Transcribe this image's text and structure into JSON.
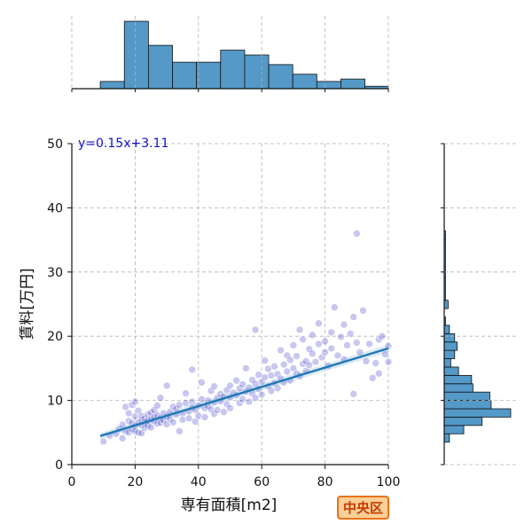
{
  "chart_data": {
    "type": "scatter",
    "xlabel": "専有面積[m2]",
    "ylabel": "賃料[万円]",
    "xlim": [
      0,
      100
    ],
    "ylim": [
      0,
      50
    ],
    "x_ticks": [
      "0",
      "20",
      "40",
      "60",
      "80",
      "100"
    ],
    "y_ticks": [
      "0",
      "10",
      "20",
      "30",
      "40",
      "50"
    ],
    "grid": true,
    "regression": {
      "slope": 0.15,
      "intercept": 3.11,
      "x_range": [
        9,
        100
      ],
      "label": "y=0.15x+3.11"
    },
    "points": [
      [
        10,
        3.6
      ],
      [
        12,
        4.5
      ],
      [
        14,
        4.8
      ],
      [
        15,
        5.6
      ],
      [
        16,
        6.2
      ],
      [
        16,
        4.1
      ],
      [
        17,
        5.2
      ],
      [
        17,
        9.0
      ],
      [
        18,
        6.8
      ],
      [
        18,
        5.0
      ],
      [
        18,
        8.0
      ],
      [
        19,
        6.5
      ],
      [
        19,
        5.5
      ],
      [
        19,
        9.3
      ],
      [
        20,
        6.0
      ],
      [
        20,
        7.5
      ],
      [
        20,
        5.2
      ],
      [
        20,
        9.8
      ],
      [
        21,
        6.6
      ],
      [
        21,
        5.0
      ],
      [
        21,
        8.4
      ],
      [
        22,
        6.9
      ],
      [
        22,
        7.6
      ],
      [
        22,
        4.9
      ],
      [
        22,
        6.2
      ],
      [
        23,
        6.5
      ],
      [
        23,
        7.2
      ],
      [
        23,
        5.7
      ],
      [
        24,
        6.9
      ],
      [
        24,
        7.8
      ],
      [
        24,
        6.1
      ],
      [
        25,
        7.1
      ],
      [
        25,
        8.1
      ],
      [
        25,
        5.8
      ],
      [
        26,
        6.8
      ],
      [
        26,
        8.5
      ],
      [
        26,
        7.4
      ],
      [
        27,
        6.4
      ],
      [
        27,
        9.2
      ],
      [
        27,
        7.7
      ],
      [
        28,
        7.2
      ],
      [
        28,
        6.5
      ],
      [
        28,
        10.4
      ],
      [
        29,
        8.0
      ],
      [
        29,
        6.9
      ],
      [
        30,
        7.5
      ],
      [
        30,
        12.3
      ],
      [
        30,
        6.3
      ],
      [
        31,
        8.2
      ],
      [
        31,
        7.1
      ],
      [
        32,
        9.0
      ],
      [
        32,
        6.6
      ],
      [
        33,
        7.8
      ],
      [
        33,
        8.7
      ],
      [
        34,
        5.2
      ],
      [
        34,
        9.3
      ],
      [
        35,
        8.0
      ],
      [
        35,
        7.0
      ],
      [
        36,
        9.6
      ],
      [
        36,
        11.1
      ],
      [
        37,
        8.3
      ],
      [
        37,
        7.2
      ],
      [
        38,
        9.8
      ],
      [
        38,
        8.9
      ],
      [
        38,
        14.8
      ],
      [
        39,
        8.5
      ],
      [
        39,
        6.7
      ],
      [
        40,
        9.2
      ],
      [
        40,
        7.6
      ],
      [
        41,
        10.2
      ],
      [
        41,
        12.8
      ],
      [
        42,
        8.8
      ],
      [
        42,
        7.4
      ],
      [
        43,
        10.0
      ],
      [
        43,
        9.1
      ],
      [
        44,
        8.6
      ],
      [
        44,
        11.5
      ],
      [
        45,
        9.7
      ],
      [
        45,
        7.9
      ],
      [
        45,
        12.2
      ],
      [
        46,
        10.4
      ],
      [
        46,
        8.5
      ],
      [
        47,
        9.9
      ],
      [
        47,
        11.0
      ],
      [
        48,
        10.6
      ],
      [
        48,
        8.2
      ],
      [
        49,
        11.6
      ],
      [
        49,
        9.4
      ],
      [
        50,
        10.5
      ],
      [
        50,
        12.3
      ],
      [
        50,
        8.8
      ],
      [
        51,
        11.2
      ],
      [
        52,
        10.8
      ],
      [
        52,
        13.1
      ],
      [
        53,
        9.6
      ],
      [
        53,
        11.9
      ],
      [
        54,
        12.5
      ],
      [
        54,
        10.2
      ],
      [
        55,
        11.4
      ],
      [
        55,
        15.0
      ],
      [
        56,
        12.0
      ],
      [
        56,
        9.8
      ],
      [
        57,
        13.2
      ],
      [
        57,
        11.1
      ],
      [
        58,
        12.6
      ],
      [
        58,
        10.4
      ],
      [
        58,
        21.0
      ],
      [
        59,
        14.0
      ],
      [
        59,
        11.8
      ],
      [
        60,
        12.9
      ],
      [
        60,
        10.9
      ],
      [
        61,
        13.6
      ],
      [
        61,
        16.2
      ],
      [
        62,
        12.2
      ],
      [
        62,
        14.9
      ],
      [
        63,
        11.5
      ],
      [
        63,
        13.9
      ],
      [
        64,
        15.3
      ],
      [
        64,
        12.7
      ],
      [
        65,
        14.1
      ],
      [
        65,
        11.9
      ],
      [
        66,
        17.8
      ],
      [
        66,
        13.4
      ],
      [
        67,
        15.6
      ],
      [
        67,
        12.8
      ],
      [
        68,
        14.5
      ],
      [
        68,
        17.0
      ],
      [
        69,
        13.1
      ],
      [
        69,
        16.3
      ],
      [
        70,
        15.0
      ],
      [
        70,
        18.6
      ],
      [
        71,
        14.2
      ],
      [
        71,
        16.9
      ],
      [
        72,
        21.0
      ],
      [
        72,
        13.8
      ],
      [
        73,
        15.7
      ],
      [
        73,
        19.5
      ],
      [
        74,
        16.1
      ],
      [
        74,
        14.6
      ],
      [
        75,
        18.0
      ],
      [
        75,
        15.5
      ],
      [
        76,
        17.3
      ],
      [
        76,
        20.2
      ],
      [
        77,
        16.0
      ],
      [
        78,
        18.8
      ],
      [
        78,
        22.0
      ],
      [
        79,
        16.7
      ],
      [
        80,
        19.2
      ],
      [
        80,
        17.5
      ],
      [
        81,
        15.4
      ],
      [
        82,
        20.6
      ],
      [
        82,
        18.1
      ],
      [
        83,
        24.5
      ],
      [
        84,
        17.0
      ],
      [
        85,
        19.9
      ],
      [
        86,
        16.4
      ],
      [
        86,
        21.8
      ],
      [
        87,
        18.6
      ],
      [
        88,
        20.4
      ],
      [
        89,
        11.0
      ],
      [
        89,
        23.0
      ],
      [
        90,
        36.0
      ],
      [
        90,
        19.0
      ],
      [
        91,
        17.5
      ],
      [
        92,
        24.0
      ],
      [
        93,
        16.1
      ],
      [
        94,
        18.8
      ],
      [
        95,
        13.5
      ],
      [
        96,
        15.8
      ],
      [
        97,
        19.5
      ],
      [
        97,
        14.2
      ],
      [
        98,
        20.0
      ],
      [
        99,
        17.2
      ],
      [
        100,
        16.0
      ],
      [
        100,
        18.5
      ]
    ],
    "top_histogram": {
      "bin_edges": [
        9,
        16.6,
        24.2,
        31.8,
        39.4,
        47,
        54.6,
        62.2,
        69.8,
        77.4,
        85,
        92.6,
        100.2
      ],
      "counts": [
        3,
        28,
        18,
        11,
        11,
        16,
        14,
        10,
        6,
        3,
        4,
        1
      ]
    },
    "right_histogram": {
      "bin_edges": [
        3.5,
        4.8,
        6.1,
        7.4,
        8.7,
        10.0,
        11.3,
        12.6,
        13.9,
        15.2,
        16.5,
        17.8,
        19.1,
        20.4,
        21.7,
        23.0,
        24.3,
        25.6,
        35.0,
        36.4
      ],
      "counts": [
        4,
        15,
        29,
        51,
        36,
        35,
        22,
        21,
        11,
        5,
        8,
        10,
        8,
        4,
        1,
        0,
        3,
        1,
        1
      ]
    },
    "colors": {
      "points": "#3b35c6",
      "line": "#1f77b4",
      "hist": "#5499c7",
      "grid": "#b3b3b3"
    }
  },
  "badge": {
    "label": "中央区",
    "bg": "#fbcf97",
    "border": "#e8731a",
    "text": "#c43a00"
  }
}
